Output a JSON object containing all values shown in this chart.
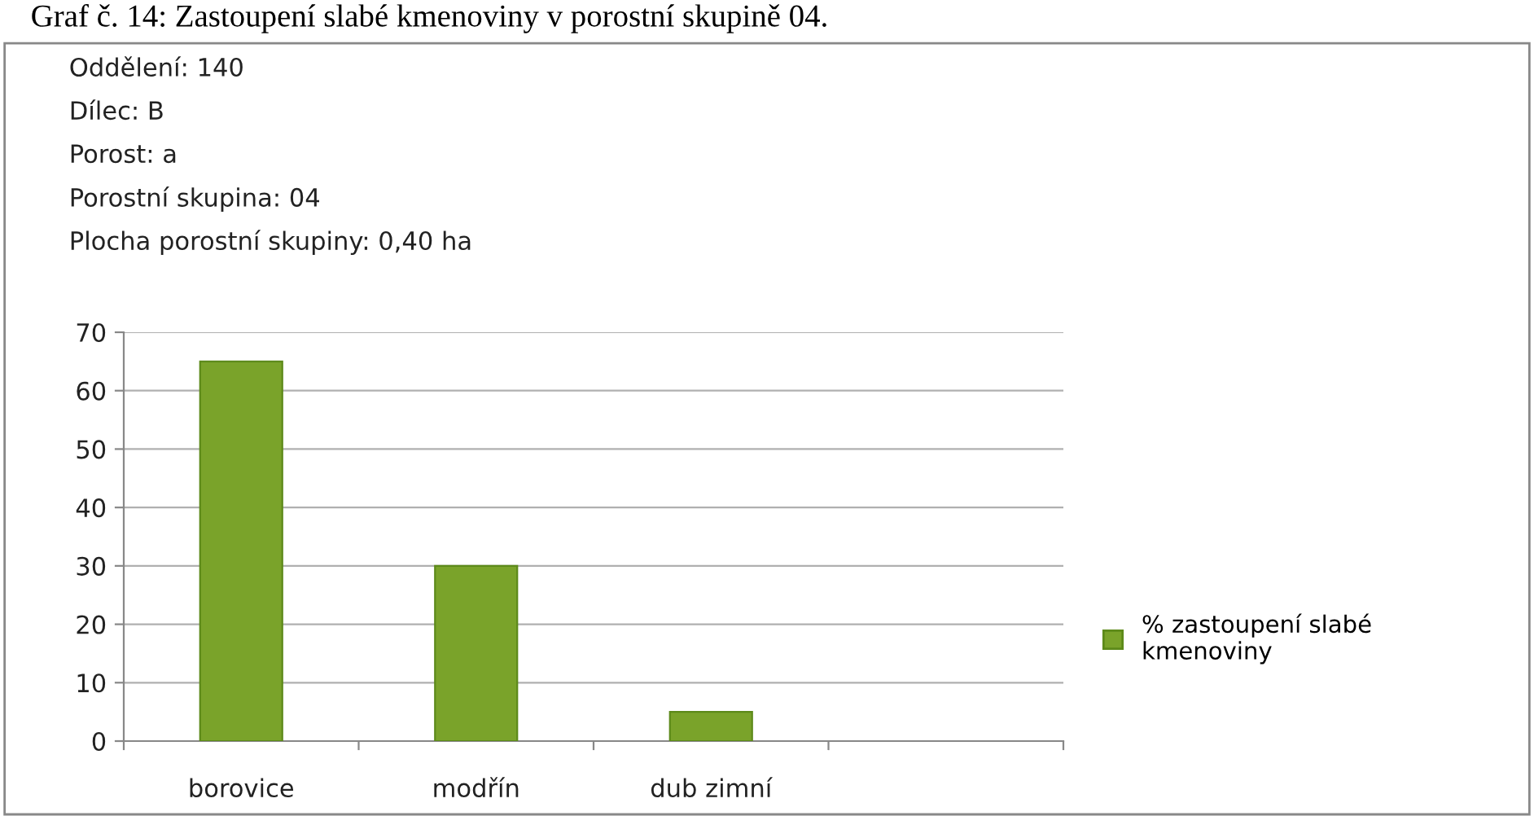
{
  "chart_data": {
    "type": "bar",
    "title": "Graf č. 14: Zastoupení slabé kmenoviny v porostní skupině 04.",
    "annotations": [
      "Oddělení: 140",
      "Dílec: B",
      "Porost: a",
      "Porostní skupina: 04",
      "Plocha porostní skupiny: 0,40 ha"
    ],
    "categories": [
      "borovice",
      "modřín",
      "dub zimní",
      null
    ],
    "series": [
      {
        "name": "% zastoupení slabé kmenoviny",
        "color": "#7aa32a",
        "values": [
          65,
          30,
          5,
          null
        ]
      }
    ],
    "ylim": [
      0,
      70
    ],
    "yticks": [
      0,
      10,
      20,
      30,
      40,
      50,
      60,
      70
    ],
    "grid": "y",
    "legend": "right"
  }
}
